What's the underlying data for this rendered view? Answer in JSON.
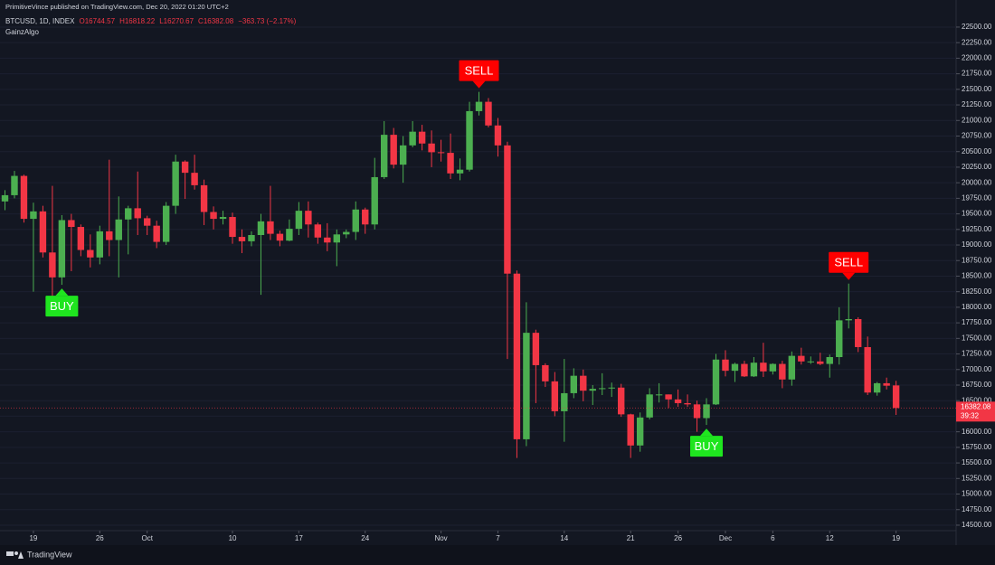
{
  "header": {
    "published": "PrimitiveVince published on TradingView.com, Dec 20, 2022 01:20 UTC+2",
    "symbol": "BTCUSD, 1D, INDEX",
    "ohlc": [
      "O16744.57",
      "H16818.22",
      "L16270.67",
      "C16382.08",
      "−363.73 (−2.17%)"
    ],
    "indicator": "GainzAlgo"
  },
  "chart_data": {
    "type": "candlestick",
    "categories": [
      null,
      null,
      null,
      "19",
      null,
      null,
      null,
      null,
      null,
      null,
      "26",
      null,
      null,
      null,
      null,
      "Oct",
      null,
      null,
      null,
      null,
      null,
      null,
      null,
      null,
      "10",
      null,
      null,
      null,
      null,
      null,
      null,
      "17",
      null,
      null,
      null,
      null,
      null,
      null,
      "24",
      null,
      null,
      null,
      null,
      null,
      null,
      null,
      "Nov",
      null,
      null,
      null,
      null,
      null,
      "7",
      null,
      null,
      null,
      null,
      null,
      null,
      "14",
      null,
      null,
      null,
      null,
      null,
      null,
      "21",
      null,
      null,
      null,
      null,
      "26",
      null,
      null,
      null,
      null,
      "Dec",
      null,
      null,
      null,
      null,
      "6",
      null,
      null,
      null,
      null,
      null,
      "12",
      null,
      null,
      null,
      null,
      null,
      null,
      "19"
    ],
    "open": [
      19700,
      19800,
      20110,
      19420,
      19540,
      18880,
      18480,
      19400,
      19290,
      18920,
      18800,
      19220,
      19080,
      19410,
      19590,
      19430,
      19310,
      19050,
      19630,
      20340,
      20160,
      19960,
      19530,
      19420,
      19450,
      19130,
      19060,
      19160,
      19380,
      19180,
      19070,
      19260,
      19550,
      19330,
      19120,
      19040,
      19170,
      19210,
      19570,
      19330,
      20090,
      20770,
      20290,
      20600,
      20820,
      20630,
      20490,
      20480,
      20150,
      20210,
      21150,
      21300,
      20920,
      20600,
      18540,
      15880,
      17590,
      17070,
      16810,
      16330,
      16620,
      16900,
      16660,
      16690,
      16700,
      16710,
      16280,
      15780,
      16230,
      16600,
      16600,
      16520,
      16460,
      16440,
      16220,
      16440,
      17160,
      16980,
      17090,
      16890,
      17110,
      16970,
      17090,
      16840,
      17220,
      17130,
      17130,
      17090,
      17200,
      17790,
      17810,
      17360,
      16630,
      16780,
      16744.57
    ],
    "high": [
      19880,
      20190,
      20130,
      19680,
      19630,
      19950,
      19480,
      19500,
      19330,
      19170,
      19310,
      20370,
      19780,
      19630,
      20180,
      19470,
      19390,
      19690,
      20450,
      20360,
      20450,
      20050,
      19620,
      19550,
      19520,
      19250,
      19220,
      19500,
      19950,
      19230,
      19410,
      19690,
      19700,
      19360,
      19350,
      19250,
      19250,
      19700,
      19600,
      20400,
      20990,
      20880,
      20750,
      20990,
      20930,
      20840,
      20690,
      20790,
      20390,
      21300,
      21460,
      21360,
      21040,
      20660,
      18590,
      18080,
      17640,
      17100,
      16960,
      17170,
      17020,
      17000,
      16750,
      16940,
      16790,
      16770,
      16290,
      16310,
      16700,
      16780,
      16600,
      16680,
      16600,
      16500,
      16540,
      17250,
      17310,
      17110,
      17140,
      17200,
      17430,
      17100,
      17140,
      17290,
      17350,
      17210,
      17270,
      17240,
      18000,
      18380,
      17840,
      17530,
      16800,
      16870,
      16818.22
    ],
    "low": [
      19560,
      19750,
      19360,
      18250,
      18800,
      18130,
      18360,
      18580,
      18820,
      18640,
      18690,
      18820,
      18480,
      18850,
      19160,
      19160,
      18950,
      19000,
      19500,
      19740,
      19890,
      19320,
      19250,
      19330,
      19020,
      18870,
      18980,
      18200,
      19080,
      18980,
      19060,
      19160,
      19120,
      19020,
      18900,
      18660,
      19110,
      19080,
      19180,
      19250,
      20060,
      20230,
      20000,
      20570,
      20520,
      20250,
      20340,
      20060,
      20040,
      20180,
      21080,
      20890,
      20420,
      17170,
      15580,
      15770,
      16460,
      16720,
      16250,
      15840,
      16540,
      16490,
      16430,
      16590,
      16560,
      16240,
      15580,
      15680,
      16200,
      16470,
      16380,
      16400,
      16400,
      16000,
      16110,
      16430,
      16890,
      16800,
      16880,
      16880,
      16880,
      16920,
      16700,
      16740,
      17080,
      17090,
      17070,
      16870,
      17080,
      17660,
      17280,
      16590,
      16580,
      16680,
      16270.67
    ],
    "close": [
      19800,
      20110,
      19420,
      19540,
      18880,
      18480,
      19400,
      19290,
      18920,
      18800,
      19220,
      19080,
      19410,
      19590,
      19430,
      19310,
      19050,
      19630,
      20340,
      20160,
      19960,
      19530,
      19420,
      19450,
      19130,
      19060,
      19160,
      19380,
      19180,
      19070,
      19260,
      19550,
      19330,
      19120,
      19040,
      19170,
      19210,
      19570,
      19330,
      20090,
      20770,
      20290,
      20600,
      20820,
      20630,
      20490,
      20480,
      20150,
      20210,
      21150,
      21300,
      20920,
      20600,
      18540,
      15880,
      17590,
      17070,
      16810,
      16330,
      16620,
      16900,
      16660,
      16690,
      16700,
      16710,
      16280,
      15780,
      16230,
      16600,
      16600,
      16520,
      16460,
      16440,
      16220,
      16440,
      17160,
      16980,
      17090,
      16890,
      17110,
      16970,
      17090,
      16840,
      17220,
      17130,
      17130,
      17090,
      17200,
      17790,
      17810,
      17360,
      16630,
      16780,
      16740,
      16382.08
    ],
    "up_color": "#4caf50",
    "down_color": "#f23645",
    "ylim": [
      14180,
      22935
    ],
    "yticks": [
      {
        "value": 14500,
        "label": "14500.00"
      },
      {
        "value": 14750,
        "label": "14750.00"
      },
      {
        "value": 15000,
        "label": "15000.00"
      },
      {
        "value": 15250,
        "label": "15250.00"
      },
      {
        "value": 15500,
        "label": "15500.00"
      },
      {
        "value": 15750,
        "label": "15750.00"
      },
      {
        "value": 16000,
        "label": "16000.00"
      },
      {
        "value": 16250,
        "label": "16250.00"
      },
      {
        "value": 16500,
        "label": "16500.00"
      },
      {
        "value": 16750,
        "label": "16750.00"
      },
      {
        "value": 17000,
        "label": "17000.00"
      },
      {
        "value": 17250,
        "label": "17250.00"
      },
      {
        "value": 17500,
        "label": "17500.00"
      },
      {
        "value": 17750,
        "label": "17750.00"
      },
      {
        "value": 18000,
        "label": "18000.00"
      },
      {
        "value": 18250,
        "label": "18250.00"
      },
      {
        "value": 18500,
        "label": "18500.00"
      },
      {
        "value": 18750,
        "label": "18750.00"
      },
      {
        "value": 19000,
        "label": "19000.00"
      },
      {
        "value": 19250,
        "label": "19250.00"
      },
      {
        "value": 19500,
        "label": "19500.00"
      },
      {
        "value": 19750,
        "label": "19750.00"
      },
      {
        "value": 20000,
        "label": "20000.00"
      },
      {
        "value": 20250,
        "label": "20250.00"
      },
      {
        "value": 20500,
        "label": "20500.00"
      },
      {
        "value": 20750,
        "label": "20750.00"
      },
      {
        "value": 21000,
        "label": "21000.00"
      },
      {
        "value": 21250,
        "label": "21250.00"
      },
      {
        "value": 21500,
        "label": "21500.00"
      },
      {
        "value": 21750,
        "label": "21750.00"
      },
      {
        "value": 22000,
        "label": "22000.00"
      },
      {
        "value": 22250,
        "label": "22250.00"
      },
      {
        "value": 22500,
        "label": "22500.00"
      }
    ],
    "signals": [
      {
        "label": "BUY",
        "index": 6,
        "color": "#1fe51f"
      },
      {
        "label": "SELL",
        "index": 50,
        "color": "#ff0000"
      },
      {
        "label": "BUY",
        "index": 74,
        "color": "#1fe51f"
      },
      {
        "label": "SELL",
        "index": 89,
        "color": "#ff0000"
      }
    ],
    "price_label": {
      "value": 16382.08,
      "label": "16382.08"
    },
    "countdown": "39:32"
  },
  "footer": {
    "brand": "TradingView"
  }
}
